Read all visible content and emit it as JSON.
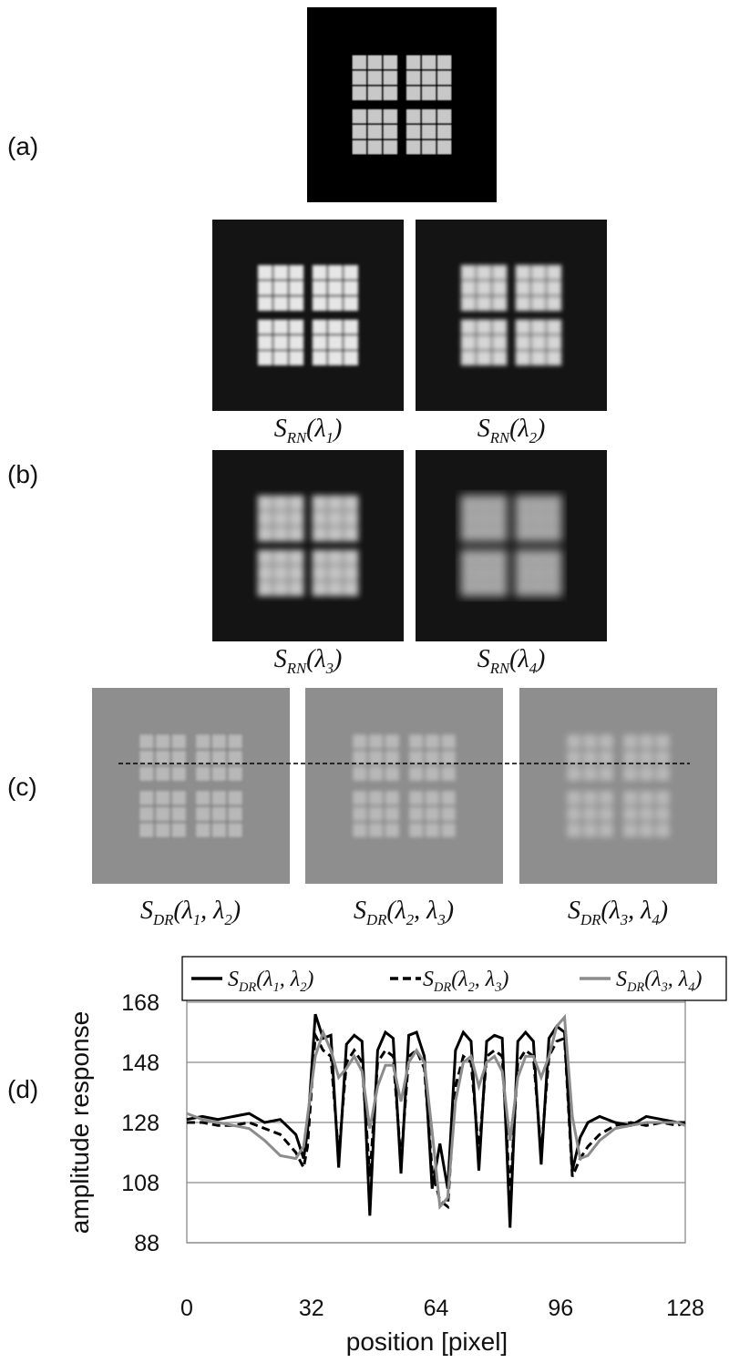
{
  "panels": [
    {
      "label": "(a)"
    },
    {
      "label": "(b)",
      "images": [
        {
          "caption": [
            "S",
            "RN",
            "(λ",
            "1",
            ")"
          ]
        },
        {
          "caption": [
            "S",
            "RN",
            "(λ",
            "2",
            ")"
          ]
        },
        {
          "caption": [
            "S",
            "RN",
            "(λ",
            "3",
            ")"
          ]
        },
        {
          "caption": [
            "S",
            "RN",
            "(λ",
            "4",
            ")"
          ]
        }
      ]
    },
    {
      "label": "(c)",
      "images": [
        {
          "caption": [
            "S",
            "DR",
            "(λ",
            "1",
            ", λ",
            "2",
            ")"
          ]
        },
        {
          "caption": [
            "S",
            "DR",
            "(λ",
            "2",
            ", λ",
            "3",
            ")"
          ]
        },
        {
          "caption": [
            "S",
            "DR",
            "(λ",
            "3",
            ", λ",
            "4",
            ")"
          ]
        }
      ]
    },
    {
      "label": "(d)"
    }
  ],
  "chart_data": {
    "type": "line",
    "x_label": "position [pixel]",
    "y_label": "amplitude response",
    "xlim": [
      0,
      128
    ],
    "xticks": [
      0,
      32,
      64,
      96,
      128
    ],
    "ylim": [
      88,
      168
    ],
    "yticks": [
      88,
      108,
      128,
      148,
      168
    ],
    "grid": true,
    "x": [
      0,
      4,
      8,
      12,
      16,
      20,
      24,
      28,
      30,
      31,
      33,
      35,
      37,
      39,
      41,
      43,
      45,
      47,
      49,
      51,
      53,
      55,
      57,
      59,
      61,
      63,
      65,
      67,
      69,
      71,
      73,
      75,
      77,
      79,
      81,
      83,
      85,
      87,
      89,
      91,
      93,
      95,
      97,
      99,
      101,
      103,
      106,
      110,
      114,
      118,
      122,
      126,
      128
    ],
    "series": [
      {
        "name": [
          "S",
          "DR",
          "(λ",
          "1",
          ", λ",
          "2",
          ")"
        ],
        "color": "#000000",
        "line_style": "solid",
        "values": [
          129,
          130,
          129,
          130,
          131,
          128,
          129,
          124,
          116,
          125,
          164,
          156,
          157,
          113,
          154,
          157,
          155,
          97,
          152,
          158,
          156,
          111,
          157,
          158,
          150,
          106,
          121,
          106,
          152,
          158,
          155,
          112,
          155,
          157,
          156,
          93,
          155,
          158,
          155,
          114,
          156,
          160,
          158,
          112,
          123,
          128,
          130,
          128,
          127,
          130,
          129,
          128,
          128
        ]
      },
      {
        "name": [
          "S",
          "DR",
          "(λ",
          "2",
          ", λ",
          "3",
          ")"
        ],
        "color": "#000000",
        "line_style": "dashed",
        "values": [
          128,
          128,
          127,
          127,
          128,
          126,
          124,
          118,
          113,
          120,
          157,
          152,
          150,
          117,
          148,
          152,
          148,
          110,
          148,
          152,
          150,
          115,
          150,
          152,
          146,
          112,
          102,
          100,
          140,
          150,
          148,
          118,
          150,
          152,
          150,
          104,
          148,
          152,
          150,
          118,
          150,
          155,
          156,
          110,
          116,
          120,
          124,
          127,
          128,
          127,
          128,
          127,
          128
        ]
      },
      {
        "name": [
          "S",
          "DR",
          "(λ",
          "3",
          ", λ",
          "4",
          ")"
        ],
        "color": "#8c8c8c",
        "line_style": "solid",
        "values": [
          131,
          129,
          128,
          127,
          126,
          122,
          117,
          116,
          120,
          130,
          150,
          158,
          152,
          143,
          146,
          150,
          145,
          126,
          140,
          147,
          147,
          135,
          148,
          152,
          148,
          125,
          100,
          103,
          135,
          148,
          150,
          140,
          148,
          150,
          145,
          122,
          143,
          150,
          150,
          143,
          150,
          160,
          163,
          130,
          116,
          117,
          122,
          126,
          127,
          128,
          128,
          128,
          127
        ]
      }
    ]
  }
}
